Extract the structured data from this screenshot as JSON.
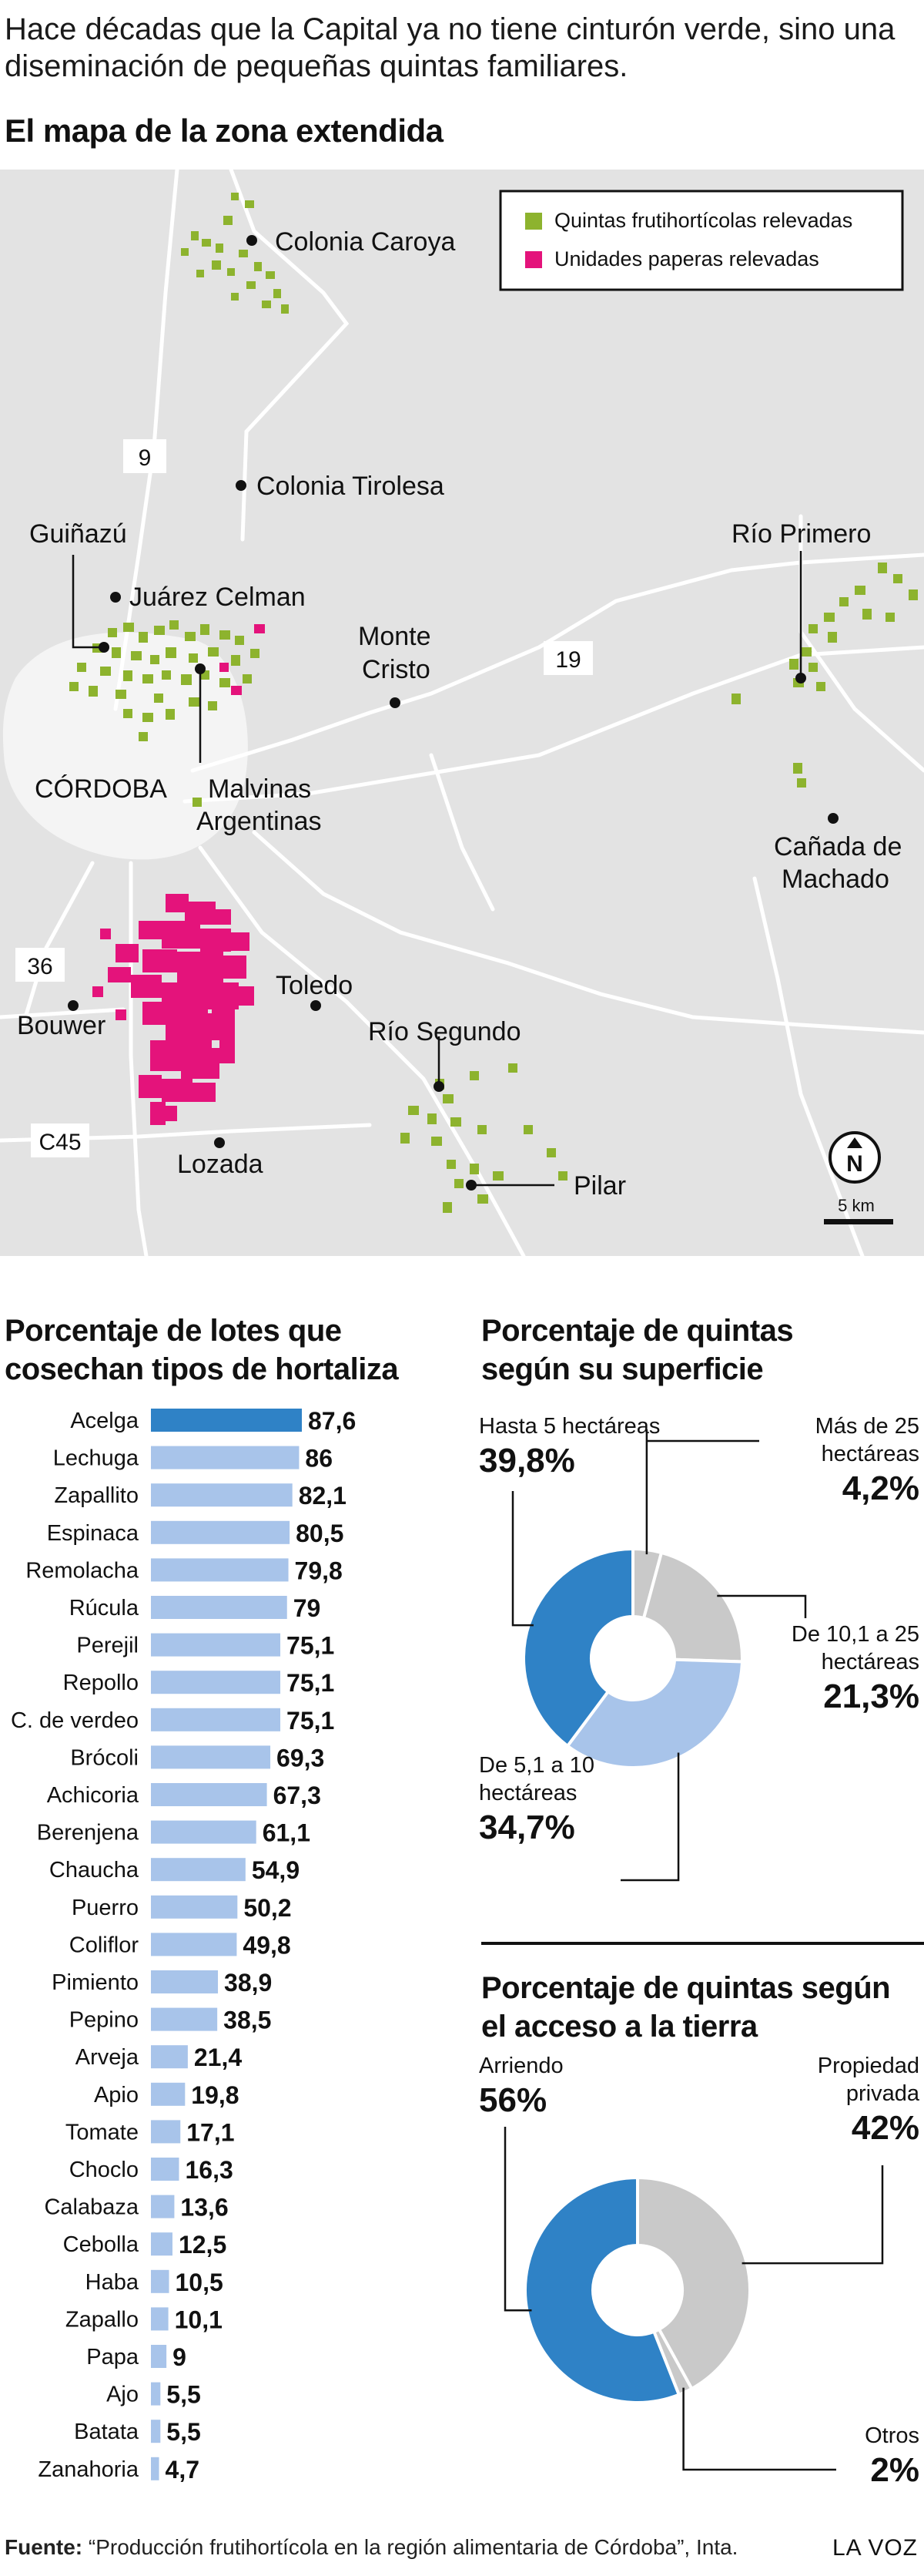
{
  "intro": "Hace décadas que la Capital ya no tiene cinturón verde, sino una diseminación de pequeñas quintas familiares.",
  "map": {
    "title": "El mapa de la zona extendida",
    "legend": [
      {
        "label": "Quintas frutihortícolas relevadas",
        "color": "#8db32e"
      },
      {
        "label": "Unidades paperas relevadas",
        "color": "#e4137b"
      }
    ],
    "places": {
      "colonia_caroya": "Colonia Caroya",
      "colonia_tirolesa": "Colonia Tirolesa",
      "guinazu": "Guiñazú",
      "juarez_celman": "Juárez Celman",
      "monte_cristo_1": "Monte",
      "monte_cristo_2": "Cristo",
      "rio_primero": "Río Primero",
      "canada_1": "Cañada de",
      "canada_2": "Machado",
      "cordoba": "CÓRDOBA",
      "malvinas_1": "Malvinas",
      "malvinas_2": "Argentinas",
      "toledo": "Toledo",
      "bouwer": "Bouwer",
      "rio_segundo": "Río Segundo",
      "lozada": "Lozada",
      "pilar": "Pilar"
    },
    "roads": {
      "r9": "9",
      "r19": "19",
      "r36": "36",
      "c45": "C45"
    },
    "north": "N",
    "scale": "5 km",
    "colors": {
      "land": "#e3e3e3",
      "urban": "#f6f6f6",
      "road": "#ffffff",
      "green": "#8db32e",
      "magenta": "#e4137b"
    }
  },
  "chart_data": [
    {
      "type": "bar",
      "title": "Porcentaje de lotes que cosechan tipos de hortaliza",
      "categories": [
        "Acelga",
        "Lechuga",
        "Zapallito",
        "Espinaca",
        "Remolacha",
        "Rúcula",
        "Perejil",
        "Repollo",
        "C. de verdeo",
        "Brócoli",
        "Achicoria",
        "Berenjena",
        "Chaucha",
        "Puerro",
        "Coliflor",
        "Pimiento",
        "Pepino",
        "Arveja",
        "Apio",
        "Tomate",
        "Choclo",
        "Calabaza",
        "Cebolla",
        "Haba",
        "Zapallo",
        "Papa",
        "Ajo",
        "Batata",
        "Zanahoria"
      ],
      "values": [
        87.6,
        86,
        82.1,
        80.5,
        79.8,
        79,
        75.1,
        75.1,
        75.1,
        69.3,
        67.3,
        61.1,
        54.9,
        50.2,
        49.8,
        38.9,
        38.5,
        21.4,
        19.8,
        17.1,
        16.3,
        13.6,
        12.5,
        10.5,
        10.1,
        9,
        5.5,
        5.5,
        4.7
      ],
      "labels": [
        "87,6",
        "86",
        "82,1",
        "80,5",
        "79,8",
        "79",
        "75,1",
        "75,1",
        "75,1",
        "69,3",
        "67,3",
        "61,1",
        "54,9",
        "50,2",
        "49,8",
        "38,9",
        "38,5",
        "21,4",
        "19,8",
        "17,1",
        "16,3",
        "13,6",
        "12,5",
        "10,5",
        "10,1",
        "9",
        "5,5",
        "5,5",
        "4,7"
      ],
      "colors": {
        "highlight": "#2f82c6",
        "bar": "#a8c4ea"
      }
    },
    {
      "type": "pie",
      "title": "Porcentaje de quintas según su superficie",
      "slices": [
        {
          "label": "Más de 25 hectáreas",
          "label_lines": [
            "Más de 25",
            "hectáreas"
          ],
          "value": 4.2,
          "value_text": "4,2%",
          "color": "#c9c9c9"
        },
        {
          "label": "De 10,1 a 25 hectáreas",
          "label_lines": [
            "De 10,1 a 25",
            "hectáreas"
          ],
          "value": 21.3,
          "value_text": "21,3%",
          "color": "#c9c9c9"
        },
        {
          "label": "De 5,1 a 10 hectáreas",
          "label_lines": [
            "De 5,1 a 10",
            "hectáreas"
          ],
          "value": 34.7,
          "value_text": "34,7%",
          "color": "#a8c4ea"
        },
        {
          "label": "Hasta 5 hectáreas",
          "label_lines": [
            "Hasta 5 hectáreas"
          ],
          "value": 39.8,
          "value_text": "39,8%",
          "color": "#2f82c6"
        }
      ]
    },
    {
      "type": "pie",
      "title": "Porcentaje de quintas según el acceso a la tierra",
      "slices": [
        {
          "label": "Propiedad privada",
          "label_lines": [
            "Propiedad",
            "privada"
          ],
          "value": 42,
          "value_text": "42%",
          "color": "#c9c9c9"
        },
        {
          "label": "Otros",
          "label_lines": [
            "Otros"
          ],
          "value": 2,
          "value_text": "2%",
          "color": "#c9c9c9"
        },
        {
          "label": "Arriendo",
          "label_lines": [
            "Arriendo"
          ],
          "value": 56,
          "value_text": "56%",
          "color": "#2f82c6"
        }
      ]
    }
  ],
  "titles": {
    "bars_1": "Porcentaje de lotes que",
    "bars_2": "cosechan tipos de hortaliza",
    "sup_1": "Porcentaje de quintas",
    "sup_2": "según su superficie",
    "acc_1": "Porcentaje de quintas según",
    "acc_2": "el acceso a la tierra"
  },
  "footer": {
    "label": "Fuente:",
    "text": " “Producción frutihortícola en la región alimentaria de Córdoba”, Inta.",
    "brand": "LA VOZ"
  }
}
